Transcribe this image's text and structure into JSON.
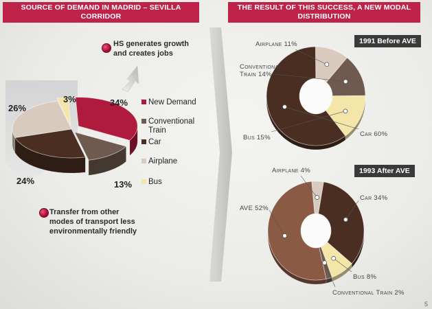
{
  "left_header": {
    "line1": "SOURCE OF DEMAND IN MADRID – SEVILLA",
    "line2": "CORRIDOR"
  },
  "right_header": {
    "line1": "THE RESULT OF THIS SUCCESS, A NEW MODAL",
    "line2": "DISTRIBUTION"
  },
  "notes": {
    "growth": {
      "line1": "HS generates growth",
      "line2": "and creates jobs"
    },
    "transfer": {
      "line1": "Transfer from other",
      "line2": "modes of transport less",
      "line3": "environmentally friendly"
    }
  },
  "page_number": "5",
  "colors": {
    "new_demand": "#b01a3c",
    "conventional_train": "#6e5a4e",
    "car": "#4a2e22",
    "airplane": "#d8cbbd",
    "bus": "#f3e6a8",
    "ave": "#8a5a44",
    "accent": "#c0234a"
  },
  "chart_data": [
    {
      "type": "pie",
      "title": "",
      "legend": [
        "New Demand",
        "Conventional Train",
        "Car",
        "Airplane",
        "Bus"
      ],
      "legend_placement": "right",
      "slices": [
        {
          "name": "New Demand",
          "value": 34,
          "label": "34%"
        },
        {
          "name": "Conventional Train",
          "value": 13,
          "label": "13%"
        },
        {
          "name": "Car",
          "value": 24,
          "label": "24%"
        },
        {
          "name": "Airplane",
          "value": 26,
          "label": "26%"
        },
        {
          "name": "Bus",
          "value": 3,
          "label": "3%"
        }
      ]
    },
    {
      "type": "pie",
      "title": "1991 Before AVE",
      "slices": [
        {
          "name": "Airplane",
          "value": 11,
          "label": "Airplane 11%"
        },
        {
          "name": "Conventional Train",
          "value": 14,
          "label": "Conventional Train 14%"
        },
        {
          "name": "Bus",
          "value": 15,
          "label": "Bus 15%"
        },
        {
          "name": "Car",
          "value": 60,
          "label": "Car 60%"
        }
      ]
    },
    {
      "type": "pie",
      "title": "1993 After AVE",
      "slices": [
        {
          "name": "Airplane",
          "value": 4,
          "label": "Airplane 4%"
        },
        {
          "name": "Car",
          "value": 34,
          "label": "Car 34%"
        },
        {
          "name": "Bus",
          "value": 8,
          "label": "Bus 8%"
        },
        {
          "name": "Conventional Train",
          "value": 2,
          "label": "Conventional Train 2%"
        },
        {
          "name": "AVE",
          "value": 52,
          "label": "AVE 52%"
        }
      ]
    }
  ]
}
